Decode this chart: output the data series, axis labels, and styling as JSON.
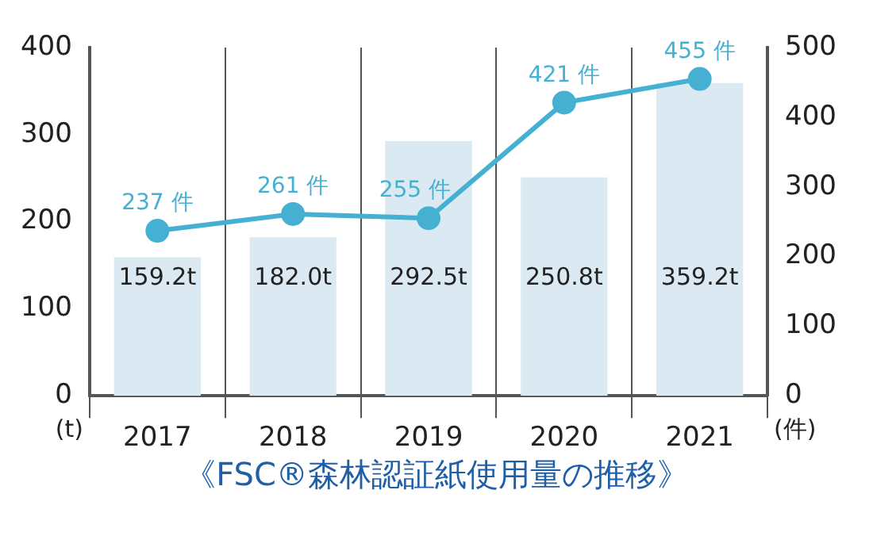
{
  "chart_data": {
    "type": "bar",
    "title": "《FSC®森林認証紙使用量の推移》",
    "ylabel": "(t)",
    "y2label": "(件)",
    "categories": [
      "2017",
      "2018",
      "2019",
      "2020",
      "2021"
    ],
    "series": [
      {
        "color": "#dbeaf2",
        "values": [
          159.2,
          182.0,
          292.5,
          250.8,
          359.2
        ],
        "value_labels": [
          "159.2t",
          "182.0t",
          "292.5t",
          "250.8t",
          "359.2t"
        ]
      },
      {
        "type": "line",
        "axis": "y2",
        "color": "#45b0d2",
        "values": [
          237,
          261,
          255,
          421,
          455
        ],
        "value_labels": [
          "237 件",
          "261 件",
          "255 件",
          "421 件",
          "455 件"
        ]
      }
    ],
    "ylim": [
      0,
      400
    ],
    "yticks": [
      0,
      100,
      200,
      300,
      400
    ],
    "y2lim": [
      0,
      500
    ],
    "y2ticks": [
      0,
      100,
      200,
      300,
      400,
      500
    ],
    "grid": "x",
    "legend": false,
    "marker": "circle",
    "line_style": "solid"
  }
}
